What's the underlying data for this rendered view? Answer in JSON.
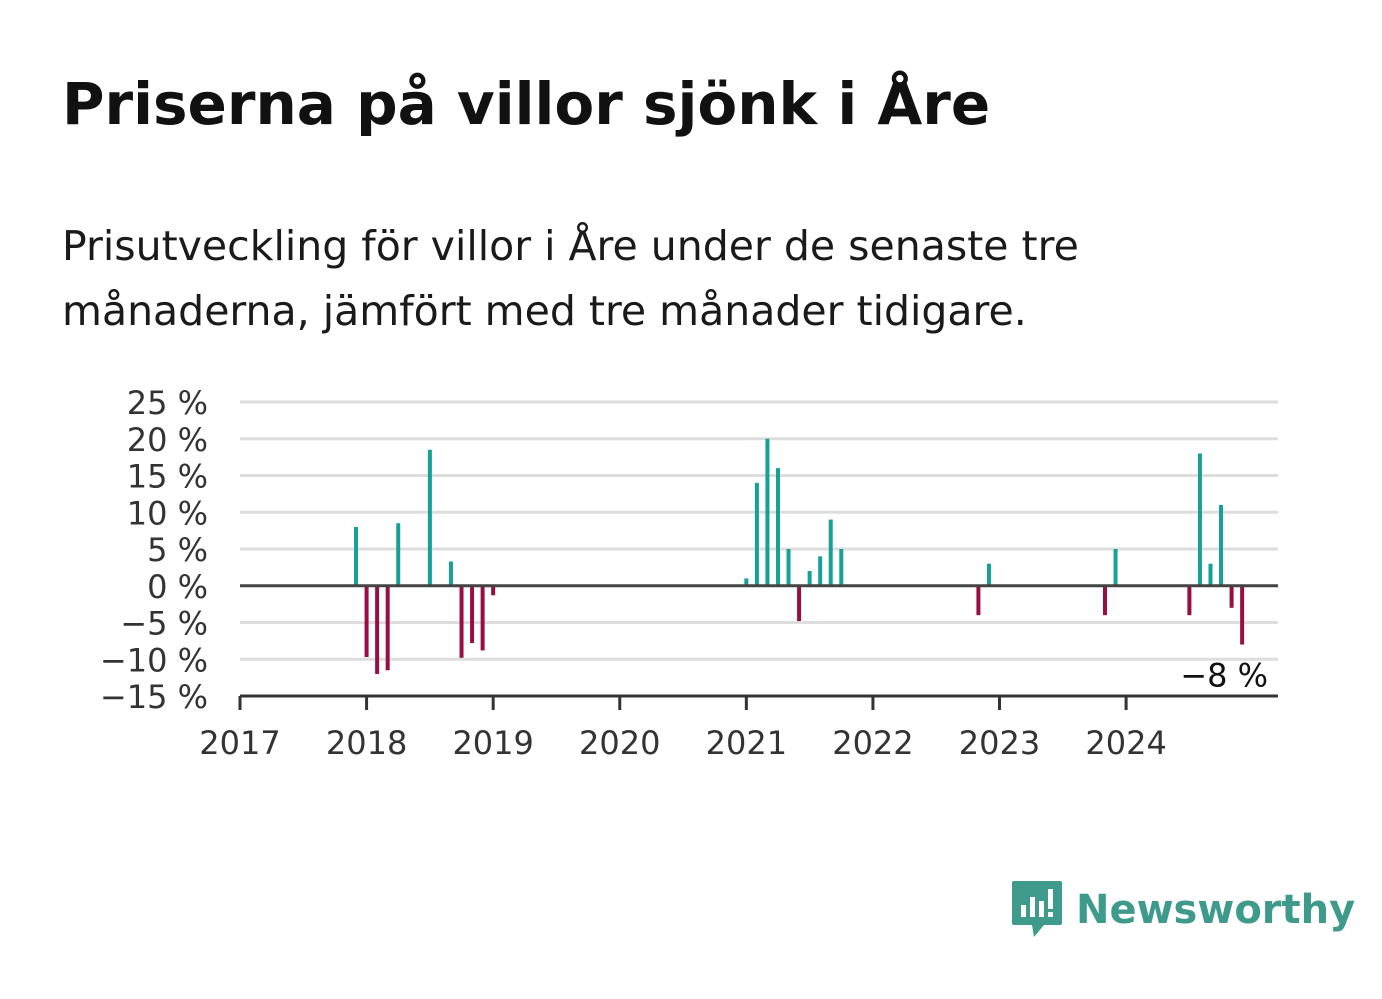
{
  "title": "Priserna på villor sjönk i Åre",
  "subtitle": "Prisutveckling för villor i Åre under de senaste tre månaderna, jämfört med tre månader tidigare.",
  "brand": {
    "name": "Newsworthy",
    "color": "#3e9b8c",
    "icon": "chart-speech-bubble-icon"
  },
  "colors": {
    "positive": "#15a196",
    "negative": "#960e42",
    "zero_line": "#444444",
    "grid": "#dddddd"
  },
  "chart_data": {
    "type": "bar",
    "ylim": [
      -15,
      25
    ],
    "yticks": [
      25,
      20,
      15,
      10,
      5,
      0,
      -5,
      -10,
      -15
    ],
    "ytick_labels": [
      "25 %",
      "20 %",
      "15 %",
      "10 %",
      "5 %",
      "0 %",
      "−5 %",
      "−10 %",
      "−15 %"
    ],
    "xlim": [
      2017,
      2025.2
    ],
    "xticks": [
      "2017",
      "2018",
      "2019",
      "2020",
      "2021",
      "2022",
      "2023",
      "2024"
    ],
    "grid": true,
    "end_label": "−8 %",
    "series": [
      {
        "points": [
          {
            "x": "2017-12",
            "y": 8
          },
          {
            "x": "2018-01",
            "y": -9.7
          },
          {
            "x": "2018-02",
            "y": -12
          },
          {
            "x": "2018-03",
            "y": -11.5
          },
          {
            "x": "2018-04",
            "y": 8.5
          },
          {
            "x": "2018-07",
            "y": 18.5
          },
          {
            "x": "2018-09",
            "y": 3.3
          },
          {
            "x": "2018-10",
            "y": -9.8
          },
          {
            "x": "2018-11",
            "y": -7.8
          },
          {
            "x": "2018-12",
            "y": -8.8
          },
          {
            "x": "2019-01",
            "y": -1.3
          },
          {
            "x": "2021-01",
            "y": 1
          },
          {
            "x": "2021-02",
            "y": 14
          },
          {
            "x": "2021-03",
            "y": 20
          },
          {
            "x": "2021-04",
            "y": 16
          },
          {
            "x": "2021-05",
            "y": 5
          },
          {
            "x": "2021-06",
            "y": -4.8
          },
          {
            "x": "2021-07",
            "y": 2
          },
          {
            "x": "2021-08",
            "y": 4
          },
          {
            "x": "2021-09",
            "y": 9
          },
          {
            "x": "2021-10",
            "y": 5
          },
          {
            "x": "2022-11",
            "y": -4
          },
          {
            "x": "2022-12",
            "y": 3
          },
          {
            "x": "2023-11",
            "y": -4
          },
          {
            "x": "2023-12",
            "y": 5
          },
          {
            "x": "2024-07",
            "y": -4
          },
          {
            "x": "2024-08",
            "y": 18
          },
          {
            "x": "2024-09",
            "y": 3
          },
          {
            "x": "2024-10",
            "y": 11
          },
          {
            "x": "2024-11",
            "y": -3
          },
          {
            "x": "2024-12",
            "y": -8
          }
        ]
      }
    ]
  }
}
